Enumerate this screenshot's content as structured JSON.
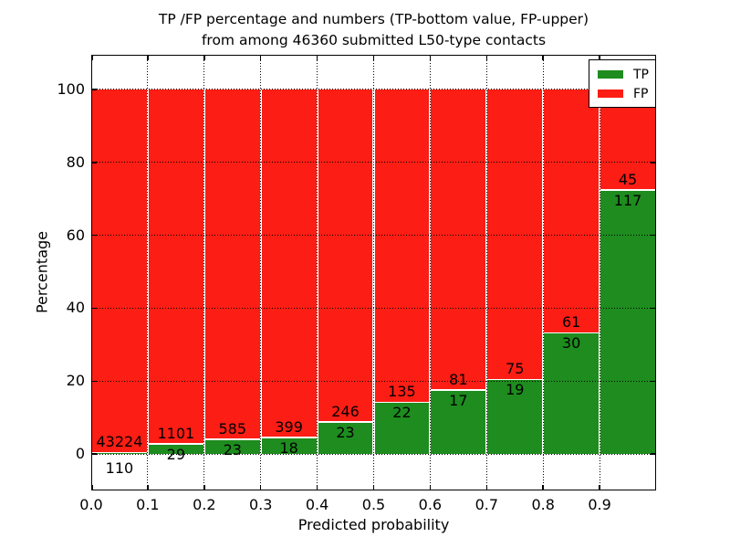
{
  "title": {
    "line1": "TP /FP percentage and numbers (TP-bottom value, FP-upper)",
    "line2": "from among 46360 submitted L50-type contacts"
  },
  "axes": {
    "xlabel": "Predicted probability",
    "ylabel": "Percentage",
    "xtick_labels": [
      "0.0",
      "0.1",
      "0.2",
      "0.3",
      "0.4",
      "0.5",
      "0.6",
      "0.7",
      "0.8",
      "0.9"
    ],
    "ytick_values": [
      0,
      20,
      40,
      60,
      80,
      100
    ],
    "xlim": [
      0.0,
      1.0
    ],
    "ylim": [
      -10,
      109.5
    ],
    "grid": "dotted"
  },
  "legend": {
    "position": "upper-right",
    "items": [
      {
        "label": "TP",
        "color": "#1e8c1e"
      },
      {
        "label": "FP",
        "color": "#fc1d14"
      }
    ]
  },
  "chart_data": {
    "type": "bar",
    "stacked": true,
    "normalized": "each bin stacked to 100%",
    "total_contacts": 46360,
    "bin_width": 0.1,
    "bin_starts": [
      0.0,
      0.1,
      0.2,
      0.3,
      0.4,
      0.5,
      0.6,
      0.7,
      0.8,
      0.9
    ],
    "categories": [
      "0.0-0.1",
      "0.1-0.2",
      "0.2-0.3",
      "0.3-0.4",
      "0.4-0.5",
      "0.5-0.6",
      "0.6-0.7",
      "0.7-0.8",
      "0.8-0.9",
      "0.9-1.0"
    ],
    "series": [
      {
        "name": "TP",
        "color": "#1e8c1e",
        "counts": [
          110,
          29,
          23,
          18,
          23,
          22,
          17,
          19,
          30,
          117
        ]
      },
      {
        "name": "FP",
        "color": "#fc1d14",
        "counts": [
          43224,
          1101,
          585,
          399,
          246,
          135,
          81,
          75,
          61,
          45
        ]
      }
    ],
    "tp_percent": [
      0.25,
      2.57,
      3.78,
      4.32,
      8.55,
      14.01,
      17.35,
      20.21,
      32.97,
      72.22
    ],
    "title": "TP /FP percentage and numbers (TP-bottom value, FP-upper) from among 46360 submitted L50-type contacts",
    "xlabel": "Predicted probability",
    "ylabel": "Percentage",
    "ylim": [
      -10,
      109.5
    ],
    "legend_position": "upper right",
    "grid": true
  }
}
